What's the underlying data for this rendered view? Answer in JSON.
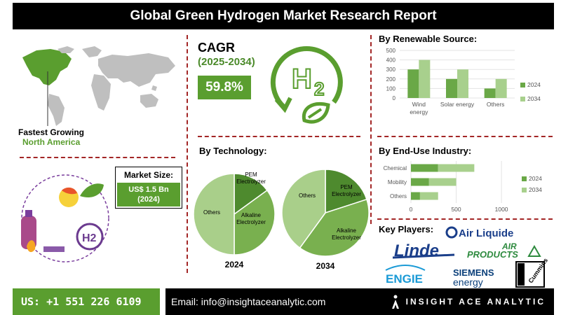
{
  "title": "Global Green Hydrogen Market Research Report",
  "region": {
    "label": "Fastest Growing",
    "value": "North America"
  },
  "cagr": {
    "label": "CAGR",
    "period": "(2025-2034)",
    "value": "59.8%"
  },
  "market_size": {
    "label": "Market Size:",
    "value": "US$ 1.5 Bn",
    "year": "(2024)"
  },
  "technology": {
    "title": "By Technology:"
  },
  "renewable": {
    "title": "By Renewable Source:"
  },
  "end_use": {
    "title": "By End-Use Industry:"
  },
  "key_players": {
    "title": "Key Players:",
    "names": [
      "Air Liquide",
      "Linde",
      "AIR",
      "PRODUCTS",
      "ENGIE",
      "SIEMENS",
      "energy",
      "Cummins"
    ]
  },
  "footer": {
    "phone": "US: +1 551 226 6109",
    "email": "Email: info@insightaceanalytic.com",
    "brand": "INSIGHT ACE ANALYTIC"
  },
  "colors": {
    "dark_green": "#6aa847",
    "light_green": "#a8d08d",
    "mid_green": "#5a9e2f",
    "pie_dark": "#4e8a2e",
    "pie_mid": "#79b04f",
    "pie_light": "#a9cf8a",
    "accent_red": "#a32626"
  },
  "chart_data": [
    {
      "id": "renewable",
      "type": "bar",
      "title": "By Renewable Source:",
      "categories": [
        "Wind energy",
        "Solar energy",
        "Others"
      ],
      "series": [
        {
          "name": "2024",
          "values": [
            300,
            200,
            100
          ]
        },
        {
          "name": "2034",
          "values": [
            400,
            300,
            200
          ]
        }
      ],
      "yticks": [
        "0",
        "100",
        "200",
        "300",
        "400",
        "500"
      ],
      "ylim": [
        0,
        500
      ],
      "legend": "right"
    },
    {
      "id": "end_use",
      "type": "bar",
      "orientation": "horizontal",
      "stacked": true,
      "title": "By End-Use Industry:",
      "categories": [
        "Chemical",
        "Mobility",
        "Others"
      ],
      "series": [
        {
          "name": "2024",
          "values": [
            300,
            200,
            100
          ]
        },
        {
          "name": "2034",
          "values": [
            400,
            300,
            200
          ]
        }
      ],
      "xticks": [
        "0",
        "500",
        "1000"
      ],
      "xlim": [
        0,
        1100
      ],
      "legend": "right"
    },
    {
      "id": "tech2024",
      "type": "pie",
      "label": "2024",
      "slices": [
        {
          "name": "PEM Electrolyzer",
          "value": 15
        },
        {
          "name": "Alkaline Electrolyzer",
          "value": 35
        },
        {
          "name": "Others",
          "value": 50
        }
      ]
    },
    {
      "id": "tech2034",
      "type": "pie",
      "label": "2034",
      "slices": [
        {
          "name": "PEM Electrolyzer",
          "value": 20
        },
        {
          "name": "Alkaline Electrolyzer",
          "value": 40
        },
        {
          "name": "Others",
          "value": 40
        }
      ]
    }
  ]
}
